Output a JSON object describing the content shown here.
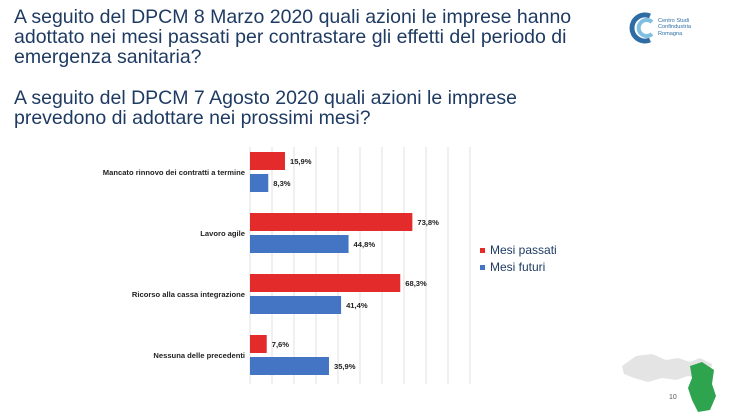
{
  "question_past": "A seguito del DPCM 8 Marzo 2020 quali azioni le imprese hanno adottato nei mesi passati per contrastare gli effetti del periodo di emergenza sanitaria?",
  "question_future": "A seguito del DPCM 7 Agosto 2020 quali azioni le imprese prevedono di adottare nei prossimi mesi?",
  "logo": {
    "line1": "Centro Studi",
    "line2": "Confindustria",
    "line3": "Romagna"
  },
  "page_number": "10",
  "colors": {
    "past": "#e32b2b",
    "future": "#4474c4",
    "text": "#1f3b63",
    "grid": "#d9d9d9"
  },
  "chart_data": {
    "type": "bar",
    "orientation": "horizontal",
    "categories": [
      "Mancato rinnovo dei contratti a termine",
      "Lavoro agile",
      "Ricorso alla cassa integrazione",
      "Nessuna delle precedenti"
    ],
    "series": [
      {
        "name": "Mesi passati",
        "values": [
          15.9,
          73.8,
          68.3,
          7.6
        ],
        "labels": [
          "15,9%",
          "73,8%",
          "68,3%",
          "7,6%"
        ]
      },
      {
        "name": "Mesi futuri",
        "values": [
          8.3,
          44.8,
          41.4,
          35.9
        ],
        "labels": [
          "8,3%",
          "44,8%",
          "41,4%",
          "35,9%"
        ]
      }
    ],
    "xlim": [
      0,
      100
    ],
    "grid": true,
    "legend_position": "right"
  }
}
